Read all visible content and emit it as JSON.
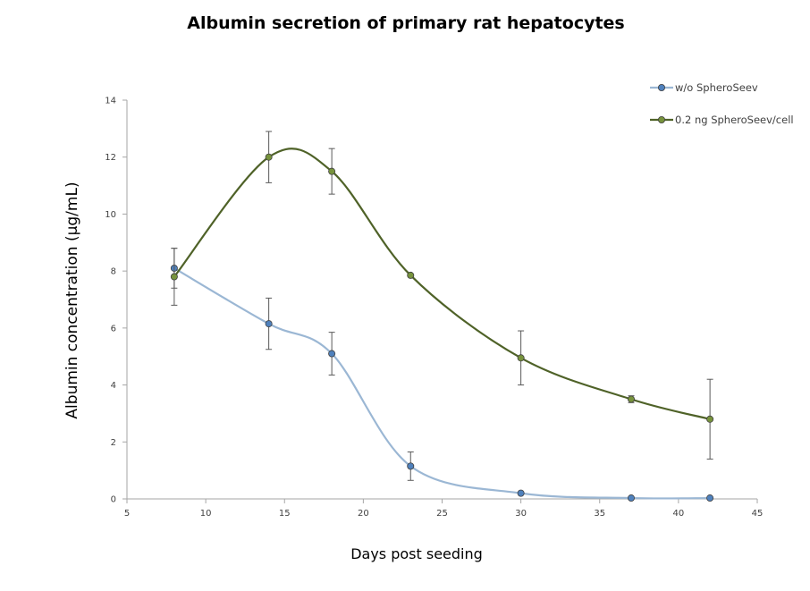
{
  "chart_data": {
    "type": "line",
    "title": "Albumin secretion of primary rat hepatocytes",
    "xlabel": "Days post seeding",
    "ylabel": "Albumin concentration (µg/mL)",
    "xlim": [
      5,
      45
    ],
    "ylim": [
      0,
      14
    ],
    "x_ticks": [
      "5",
      "10",
      "15",
      "20",
      "25",
      "30",
      "35",
      "40",
      "45"
    ],
    "y_ticks": [
      "0",
      "2",
      "4",
      "6",
      "8",
      "10",
      "12",
      "14"
    ],
    "grid": false,
    "legend_position": "top-right",
    "smooth": true,
    "series": [
      {
        "name": "w/o SpheroSeev",
        "color": "#9bb7d4",
        "marker_color": "#4f81bd",
        "x": [
          8,
          14,
          18,
          23,
          30,
          37,
          42
        ],
        "y": [
          8.1,
          6.15,
          5.1,
          1.15,
          0.2,
          0.03,
          0.03
        ],
        "error": [
          0.7,
          0.9,
          0.75,
          0.5,
          0,
          0,
          0
        ]
      },
      {
        "name": "0.2 ng SpheroSeev/cell",
        "color": "#4f6228",
        "marker_color": "#77933c",
        "x": [
          8,
          14,
          18,
          23,
          30,
          37,
          42
        ],
        "y": [
          7.8,
          12.0,
          11.5,
          7.85,
          4.95,
          3.5,
          2.8
        ],
        "error": [
          1.0,
          0.9,
          0.8,
          0,
          0.95,
          0.12,
          1.4
        ]
      }
    ]
  }
}
